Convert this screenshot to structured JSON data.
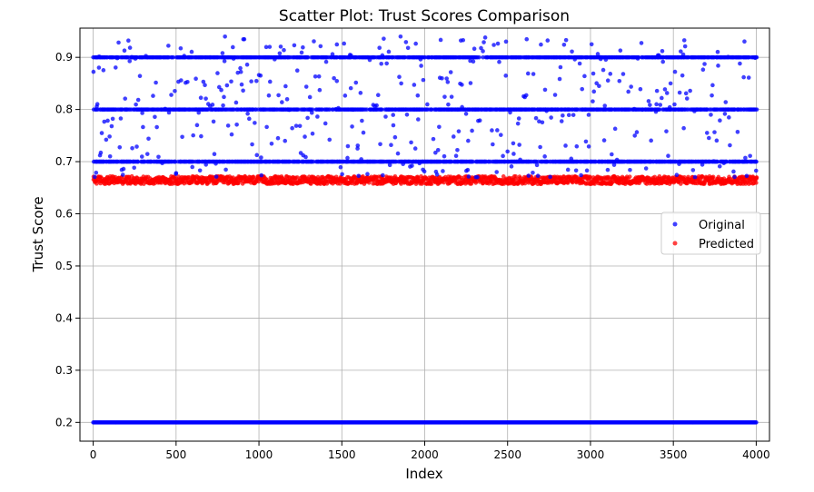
{
  "chart_data": {
    "type": "scatter",
    "title": "Scatter Plot: Trust Scores Comparison",
    "xlabel": "Index",
    "ylabel": "Trust Score",
    "xlim": [
      -80,
      4080
    ],
    "ylim": [
      0.164,
      0.956
    ],
    "xticks": [
      0,
      500,
      1000,
      1500,
      2000,
      2500,
      3000,
      3500,
      4000
    ],
    "yticks": [
      0.2,
      0.3,
      0.4,
      0.5,
      0.6,
      0.7,
      0.8,
      0.9
    ],
    "grid": true,
    "legend_position": "center-right",
    "n_points": 4000,
    "series": [
      {
        "name": "Original",
        "color": "#0000ff",
        "description": "Clusters at 0.2 (every index), 0.7, 0.8, 0.9, plus scattered values between 0.67 and 0.94",
        "bands": [
          0.2,
          0.7,
          0.8,
          0.9
        ],
        "scatter_range": [
          0.67,
          0.94
        ]
      },
      {
        "name": "Predicted",
        "color": "#ff0000",
        "description": "Dense band of predictions between roughly 0.657 and 0.672 at every index",
        "range": [
          0.657,
          0.672
        ],
        "center": 0.664
      }
    ]
  }
}
